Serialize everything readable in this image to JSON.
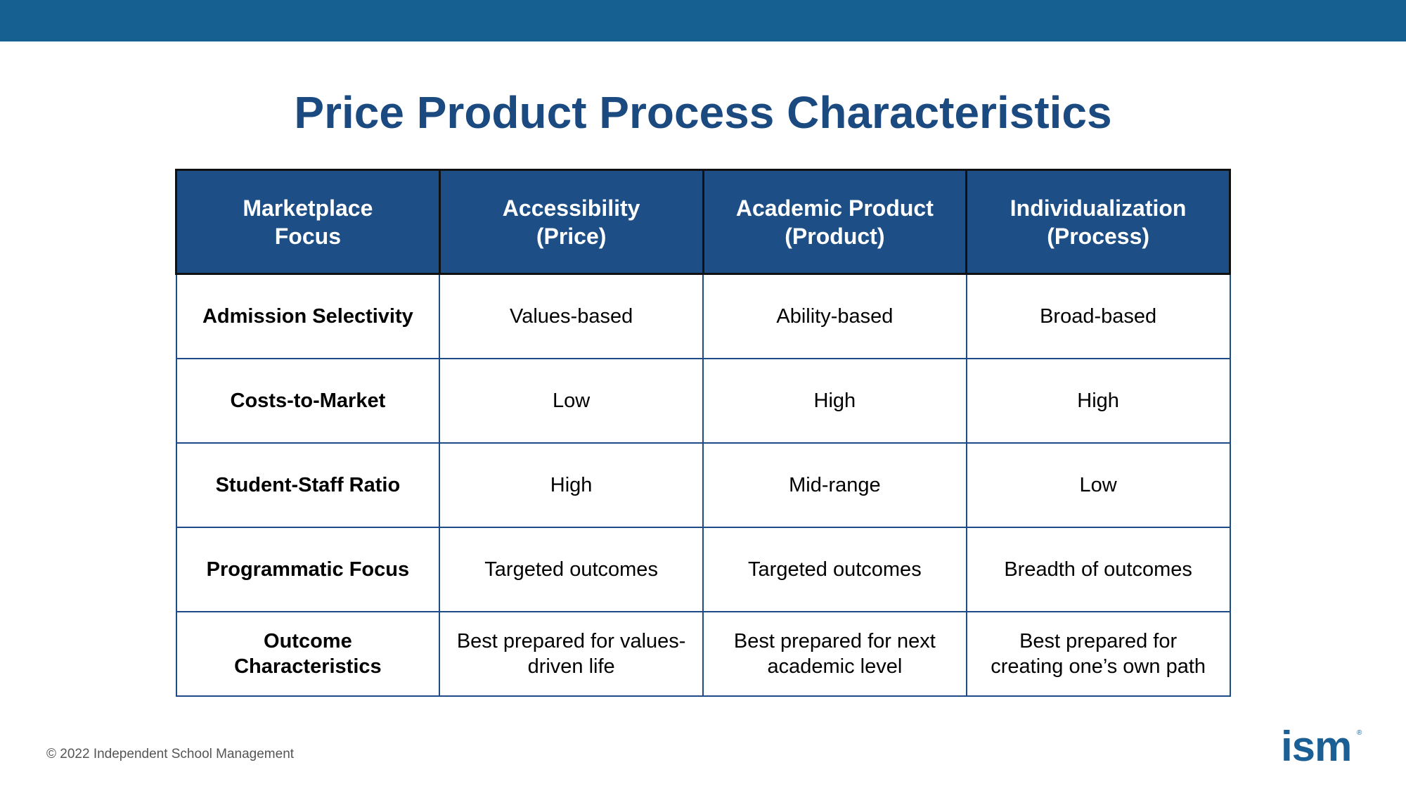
{
  "slide": {
    "title": "Price Product Process Characteristics",
    "footer": "© 2022 Independent School Management",
    "logo": "ism",
    "colors": {
      "top_band": "#165f91",
      "title": "#1a4a7f",
      "header_fill": "#1d4e85",
      "border": "#1f4c86"
    }
  },
  "table": {
    "headers": [
      [
        "Marketplace",
        "Focus"
      ],
      [
        "Accessibility",
        "(Price)"
      ],
      [
        "Academic Product",
        "(Product)"
      ],
      [
        "Individualization",
        "(Process)"
      ]
    ],
    "rows": [
      [
        [
          "Admission Selectivity"
        ],
        [
          "Values-based"
        ],
        [
          "Ability-based"
        ],
        [
          "Broad-based"
        ]
      ],
      [
        [
          "Costs-to-Market"
        ],
        [
          "Low"
        ],
        [
          "High"
        ],
        [
          "High"
        ]
      ],
      [
        [
          "Student-Staff Ratio"
        ],
        [
          "High"
        ],
        [
          "Mid-range"
        ],
        [
          "Low"
        ]
      ],
      [
        [
          "Programmatic Focus"
        ],
        [
          "Targeted outcomes"
        ],
        [
          "Targeted outcomes"
        ],
        [
          "Breadth of outcomes"
        ]
      ],
      [
        [
          "Outcome",
          "Characteristics"
        ],
        [
          "Best prepared for values-",
          "driven life"
        ],
        [
          "Best prepared for next",
          "academic level"
        ],
        [
          "Best prepared for",
          "creating one’s own path"
        ]
      ]
    ]
  }
}
